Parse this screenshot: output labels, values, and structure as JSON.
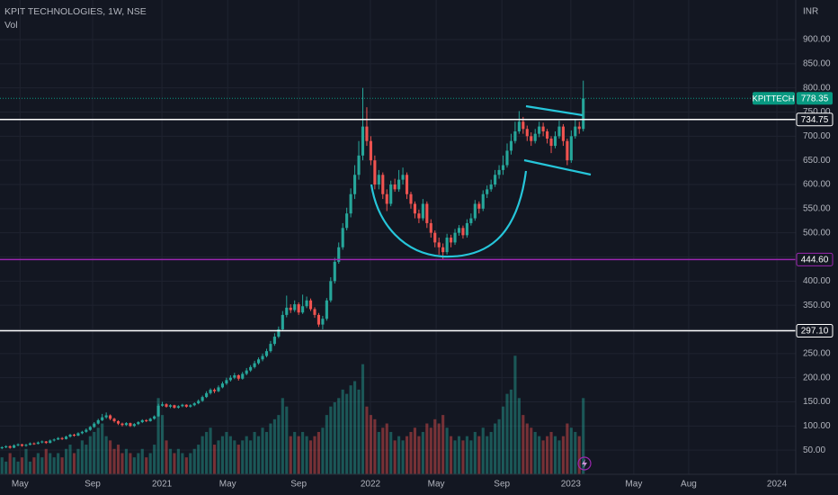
{
  "chart_data": {
    "type": "candlestick",
    "title": "KPIT TECHNOLOGIES, 1W, NSE",
    "volume_label": "Vol",
    "currency": "INR",
    "up_color": "#26a69a",
    "down_color": "#ef5350",
    "grid": true,
    "ylim": [
      0,
      982
    ],
    "yticks": [
      {
        "value": 50,
        "label": "50.00"
      },
      {
        "value": 100,
        "label": "100.00"
      },
      {
        "value": 150,
        "label": "150.00"
      },
      {
        "value": 200,
        "label": "200.00"
      },
      {
        "value": 250,
        "label": "250.00"
      },
      {
        "value": 300,
        "label": "300.00"
      },
      {
        "value": 350,
        "label": "350.00"
      },
      {
        "value": 400,
        "label": "400.00"
      },
      {
        "value": 450,
        "label": "450.00"
      },
      {
        "value": 500,
        "label": "500.00"
      },
      {
        "value": 550,
        "label": "550.00"
      },
      {
        "value": 600,
        "label": "600.00"
      },
      {
        "value": 650,
        "label": "650.00"
      },
      {
        "value": 700,
        "label": "700.00"
      },
      {
        "value": 750,
        "label": "750.00"
      },
      {
        "value": 800,
        "label": "800.00"
      },
      {
        "value": 850,
        "label": "850.00"
      },
      {
        "value": 900,
        "label": "900.00"
      }
    ],
    "xlim": [
      -0.5,
      198
    ],
    "xticks": [
      {
        "value": 4.5,
        "label": "May"
      },
      {
        "value": 22.6,
        "label": "Sep"
      },
      {
        "value": 39.9,
        "label": "2021"
      },
      {
        "value": 56.3,
        "label": "May"
      },
      {
        "value": 74,
        "label": "Sep"
      },
      {
        "value": 91.9,
        "label": "2022"
      },
      {
        "value": 108.3,
        "label": "May"
      },
      {
        "value": 124.7,
        "label": "Sep"
      },
      {
        "value": 141.9,
        "label": "2023"
      },
      {
        "value": 157.6,
        "label": "May"
      },
      {
        "value": 171.3,
        "label": "Aug"
      },
      {
        "value": 193.3,
        "label": "2024"
      }
    ],
    "vlim": [
      0,
      112
    ],
    "last_price": {
      "name": "KPITTECH",
      "value": 778.35,
      "color": "#089981"
    },
    "levels": [
      {
        "value": 734.75,
        "color": "#ffffff"
      },
      {
        "value": 444.6,
        "label": "444.60",
        "color": "#9c27b0"
      },
      {
        "value": 297.1,
        "label": "297.10",
        "color": "#ffffff"
      }
    ],
    "candles": [
      [
        54,
        58,
        52,
        56,
        4
      ],
      [
        56,
        60,
        54,
        58,
        3
      ],
      [
        58,
        60,
        53,
        55,
        5
      ],
      [
        55,
        62,
        54,
        60,
        4
      ],
      [
        60,
        64,
        58,
        62,
        3
      ],
      [
        62,
        63,
        57,
        59,
        4
      ],
      [
        59,
        63,
        57,
        61,
        6
      ],
      [
        61,
        66,
        60,
        64,
        3
      ],
      [
        64,
        66,
        61,
        63,
        4
      ],
      [
        63,
        68,
        62,
        66,
        5
      ],
      [
        66,
        70,
        64,
        68,
        4
      ],
      [
        68,
        69,
        63,
        65,
        6
      ],
      [
        65,
        72,
        64,
        70,
        5
      ],
      [
        70,
        74,
        68,
        72,
        4
      ],
      [
        72,
        77,
        71,
        75,
        5
      ],
      [
        75,
        77,
        71,
        73,
        4
      ],
      [
        73,
        80,
        72,
        78,
        6
      ],
      [
        78,
        84,
        76,
        82,
        7
      ],
      [
        82,
        84,
        78,
        80,
        5
      ],
      [
        80,
        87,
        79,
        85,
        6
      ],
      [
        85,
        90,
        83,
        88,
        8
      ],
      [
        88,
        95,
        86,
        92,
        7
      ],
      [
        92,
        100,
        90,
        98,
        9
      ],
      [
        98,
        108,
        96,
        105,
        10
      ],
      [
        105,
        115,
        103,
        112,
        11
      ],
      [
        112,
        125,
        110,
        118,
        12
      ],
      [
        118,
        128,
        115,
        122,
        9
      ],
      [
        122,
        124,
        112,
        115,
        8
      ],
      [
        115,
        117,
        107,
        110,
        6
      ],
      [
        110,
        112,
        102,
        105,
        7
      ],
      [
        105,
        107,
        99,
        102,
        5
      ],
      [
        102,
        108,
        100,
        106,
        6
      ],
      [
        106,
        107,
        98,
        100,
        5
      ],
      [
        100,
        106,
        98,
        104,
        4
      ],
      [
        104,
        110,
        102,
        108,
        5
      ],
      [
        108,
        114,
        106,
        112,
        6
      ],
      [
        112,
        114,
        108,
        110,
        4
      ],
      [
        110,
        117,
        109,
        115,
        5
      ],
      [
        115,
        122,
        113,
        120,
        7
      ],
      [
        120,
        146,
        119,
        142,
        18
      ],
      [
        142,
        150,
        140,
        145,
        14
      ],
      [
        145,
        147,
        138,
        140,
        8
      ],
      [
        140,
        145,
        137,
        143,
        6
      ],
      [
        143,
        144,
        136,
        138,
        5
      ],
      [
        138,
        143,
        136,
        141,
        6
      ],
      [
        141,
        146,
        139,
        144,
        5
      ],
      [
        144,
        145,
        138,
        140,
        4
      ],
      [
        140,
        145,
        138,
        143,
        5
      ],
      [
        143,
        149,
        141,
        147,
        6
      ],
      [
        147,
        155,
        145,
        152,
        7
      ],
      [
        152,
        163,
        150,
        160,
        9
      ],
      [
        160,
        172,
        158,
        168,
        10
      ],
      [
        168,
        178,
        165,
        175,
        11
      ],
      [
        175,
        178,
        168,
        172,
        7
      ],
      [
        172,
        184,
        170,
        180,
        8
      ],
      [
        180,
        192,
        178,
        188,
        9
      ],
      [
        188,
        200,
        185,
        195,
        10
      ],
      [
        195,
        205,
        192,
        200,
        9
      ],
      [
        200,
        210,
        197,
        205,
        8
      ],
      [
        205,
        207,
        194,
        198,
        7
      ],
      [
        198,
        212,
        196,
        208,
        8
      ],
      [
        208,
        220,
        205,
        215,
        9
      ],
      [
        215,
        226,
        212,
        222,
        8
      ],
      [
        222,
        235,
        219,
        230,
        10
      ],
      [
        230,
        242,
        227,
        238,
        9
      ],
      [
        238,
        250,
        234,
        245,
        11
      ],
      [
        245,
        260,
        242,
        255,
        10
      ],
      [
        255,
        276,
        252,
        270,
        12
      ],
      [
        270,
        292,
        266,
        285,
        13
      ],
      [
        285,
        306,
        282,
        300,
        14
      ],
      [
        300,
        338,
        298,
        330,
        18
      ],
      [
        330,
        370,
        325,
        345,
        16
      ],
      [
        345,
        352,
        334,
        340,
        9
      ],
      [
        340,
        360,
        336,
        352,
        10
      ],
      [
        352,
        356,
        330,
        335,
        9
      ],
      [
        335,
        372,
        332,
        348,
        10
      ],
      [
        348,
        368,
        344,
        360,
        9
      ],
      [
        360,
        364,
        338,
        342,
        8
      ],
      [
        342,
        346,
        324,
        330,
        9
      ],
      [
        330,
        334,
        305,
        310,
        10
      ],
      [
        310,
        328,
        300,
        322,
        11
      ],
      [
        322,
        365,
        318,
        360,
        14
      ],
      [
        360,
        408,
        356,
        400,
        16
      ],
      [
        400,
        448,
        395,
        440,
        17
      ],
      [
        440,
        480,
        436,
        470,
        18
      ],
      [
        470,
        520,
        465,
        510,
        20
      ],
      [
        510,
        552,
        505,
        540,
        19
      ],
      [
        540,
        592,
        532,
        580,
        21
      ],
      [
        580,
        640,
        570,
        620,
        22
      ],
      [
        620,
        690,
        610,
        660,
        20
      ],
      [
        660,
        800,
        650,
        720,
        26
      ],
      [
        720,
        760,
        680,
        690,
        16
      ],
      [
        690,
        700,
        640,
        650,
        14
      ],
      [
        650,
        660,
        590,
        600,
        13
      ],
      [
        600,
        630,
        590,
        620,
        10
      ],
      [
        620,
        625,
        570,
        580,
        11
      ],
      [
        580,
        590,
        545,
        560,
        12
      ],
      [
        560,
        608,
        555,
        600,
        10
      ],
      [
        600,
        612,
        585,
        590,
        8
      ],
      [
        590,
        630,
        585,
        610,
        9
      ],
      [
        610,
        635,
        600,
        620,
        8
      ],
      [
        620,
        625,
        570,
        580,
        9
      ],
      [
        580,
        585,
        550,
        560,
        10
      ],
      [
        560,
        565,
        530,
        540,
        11
      ],
      [
        540,
        548,
        520,
        530,
        9
      ],
      [
        530,
        570,
        525,
        560,
        10
      ],
      [
        560,
        565,
        510,
        520,
        12
      ],
      [
        520,
        528,
        490,
        500,
        11
      ],
      [
        500,
        505,
        470,
        480,
        13
      ],
      [
        480,
        490,
        455,
        470,
        12
      ],
      [
        470,
        478,
        445,
        460,
        14
      ],
      [
        460,
        498,
        455,
        490,
        11
      ],
      [
        490,
        496,
        470,
        480,
        9
      ],
      [
        480,
        508,
        475,
        500,
        8
      ],
      [
        500,
        516,
        494,
        510,
        9
      ],
      [
        510,
        515,
        488,
        495,
        8
      ],
      [
        495,
        528,
        490,
        520,
        9
      ],
      [
        520,
        540,
        515,
        530,
        8
      ],
      [
        530,
        568,
        525,
        560,
        10
      ],
      [
        560,
        565,
        540,
        550,
        9
      ],
      [
        550,
        588,
        545,
        580,
        11
      ],
      [
        580,
        598,
        572,
        590,
        9
      ],
      [
        590,
        610,
        585,
        600,
        10
      ],
      [
        600,
        630,
        595,
        620,
        12
      ],
      [
        620,
        640,
        612,
        630,
        13
      ],
      [
        630,
        660,
        620,
        640,
        16
      ],
      [
        640,
        685,
        635,
        670,
        19
      ],
      [
        670,
        705,
        662,
        690,
        20
      ],
      [
        690,
        730,
        685,
        710,
        28
      ],
      [
        710,
        752,
        705,
        730,
        18
      ],
      [
        730,
        740,
        705,
        715,
        14
      ],
      [
        715,
        722,
        690,
        700,
        12
      ],
      [
        700,
        708,
        680,
        690,
        11
      ],
      [
        690,
        715,
        685,
        705,
        10
      ],
      [
        705,
        730,
        698,
        720,
        9
      ],
      [
        720,
        728,
        700,
        710,
        8
      ],
      [
        710,
        715,
        685,
        695,
        9
      ],
      [
        695,
        700,
        665,
        680,
        10
      ],
      [
        680,
        710,
        675,
        700,
        9
      ],
      [
        700,
        732,
        695,
        720,
        8
      ],
      [
        720,
        725,
        680,
        690,
        9
      ],
      [
        690,
        695,
        640,
        650,
        12
      ],
      [
        650,
        712,
        645,
        700,
        11
      ],
      [
        700,
        735,
        695,
        720,
        10
      ],
      [
        720,
        730,
        705,
        715,
        9
      ],
      [
        715,
        815,
        710,
        778.35,
        18
      ]
    ]
  }
}
